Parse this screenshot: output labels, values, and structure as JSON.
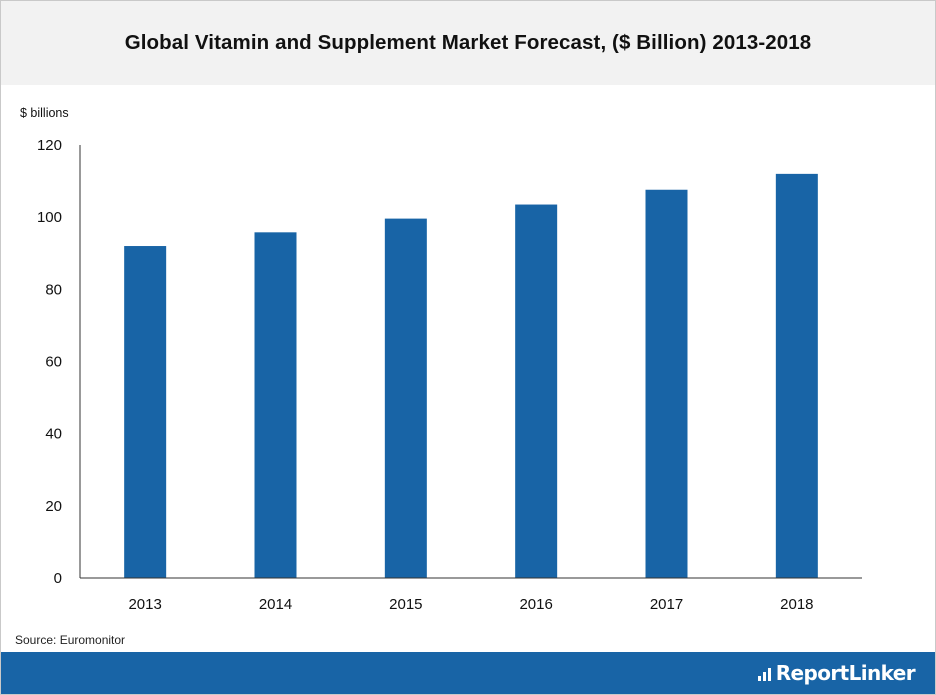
{
  "header": {
    "title": "Global Vitamin and Supplement Market Forecast, ($ Billion) 2013-2018"
  },
  "chart_data": {
    "type": "bar",
    "title": "Global Vitamin and Supplement Market Forecast, ($ Billion) 2013-2018",
    "ylabel": "$ billions",
    "xlabel": "",
    "categories": [
      "2013",
      "2014",
      "2015",
      "2016",
      "2017",
      "2018"
    ],
    "values": [
      92,
      95.8,
      99.6,
      103.5,
      107.6,
      112
    ],
    "ylim": [
      0,
      120
    ],
    "yticks": [
      0,
      20,
      40,
      60,
      80,
      100,
      120
    ],
    "grid": false,
    "legend": "none",
    "bar_color": "#1864a6"
  },
  "footer": {
    "source": "Source: Euromonitor",
    "brand": "ReportLinker",
    "brand_color": "#1864a6"
  }
}
